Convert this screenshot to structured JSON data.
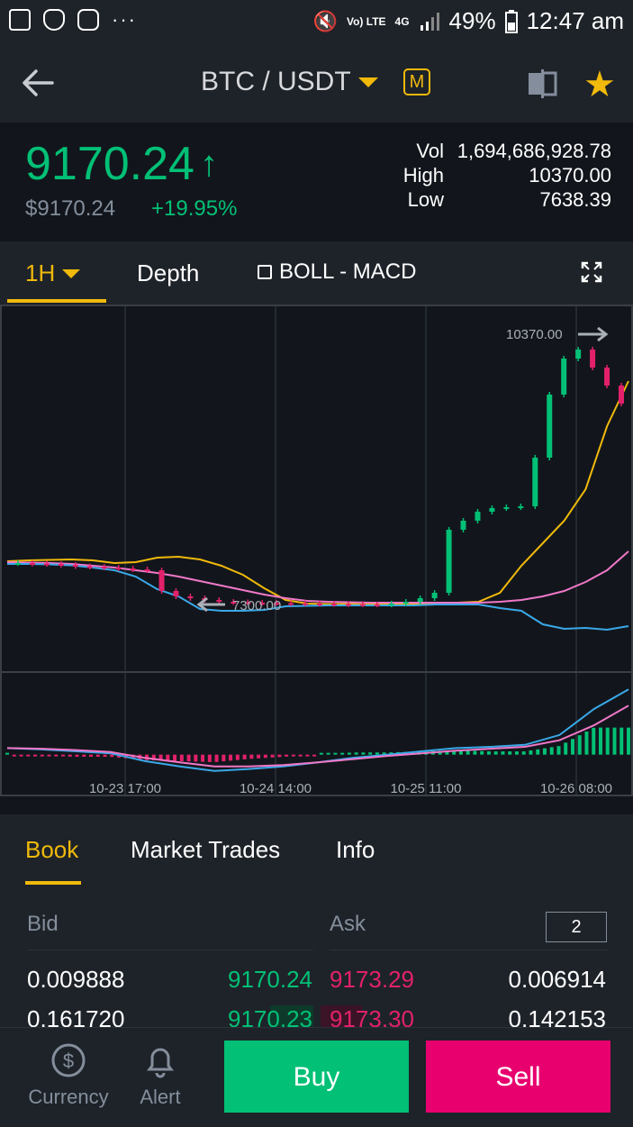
{
  "status_bar": {
    "battery": "49%",
    "time": "12:47 am",
    "network_top": "Vo) LTE",
    "network_gen": "4G"
  },
  "header": {
    "pair": "BTC / USDT",
    "margin_badge": "M"
  },
  "ticker": {
    "price": "9170.24",
    "usd_price": "$9170.24",
    "change": "+19.95%",
    "vol_label": "Vol",
    "vol": "1,694,686,928.78",
    "high_label": "High",
    "high": "10370.00",
    "low_label": "Low",
    "low": "7638.39"
  },
  "chart_tabs": {
    "interval": "1H",
    "depth": "Depth",
    "indicators": "BOLL - MACD"
  },
  "chart_data": {
    "type": "line",
    "x_ticks": [
      "10-23 17:00",
      "10-24 14:00",
      "10-25 11:00",
      "10-26 08:00"
    ],
    "annotations": {
      "high_marker": "10370.00",
      "low_marker": "7300.00"
    },
    "series": [
      {
        "name": "",
        "color": "#f0b90b",
        "values": [
          7950,
          7960,
          7965,
          7970,
          7960,
          7930,
          7940,
          7990,
          8000,
          7970,
          7900,
          7800,
          7650,
          7520,
          7480,
          7475,
          7475,
          7470,
          7475,
          7475,
          7480,
          7490,
          7500,
          7600,
          7900,
          8150,
          8400,
          8750,
          9450,
          9950
        ]
      },
      {
        "name": "",
        "color": "#f078c8",
        "values": [
          7940,
          7935,
          7930,
          7920,
          7900,
          7880,
          7850,
          7820,
          7780,
          7730,
          7680,
          7630,
          7580,
          7540,
          7510,
          7500,
          7495,
          7490,
          7490,
          7490,
          7490,
          7490,
          7490,
          7500,
          7520,
          7560,
          7620,
          7720,
          7850,
          8060
        ]
      },
      {
        "name": "",
        "color": "#3aa8e8",
        "values": [
          7920,
          7920,
          7915,
          7905,
          7880,
          7850,
          7780,
          7640,
          7560,
          7420,
          7400,
          7400,
          7410,
          7450,
          7455,
          7460,
          7460,
          7460,
          7460,
          7460,
          7470,
          7470,
          7470,
          7430,
          7400,
          7250,
          7200,
          7210,
          7190,
          7230
        ]
      }
    ],
    "candles_close": [
      7930,
      7925,
      7920,
      7910,
      7895,
      7890,
      7880,
      7870,
      7860,
      7850,
      7620,
      7560,
      7540,
      7520,
      7500,
      7495,
      7490,
      7488,
      7486,
      7484,
      7480,
      7478,
      7476,
      7474,
      7472,
      7470,
      7480,
      7500,
      7540,
      7600,
      8300,
      8400,
      8500,
      8540,
      8550,
      8560,
      9100,
      9800,
      10200,
      10300,
      10100,
      9900,
      9700
    ],
    "macd": {
      "dif": [
        0.1,
        0.08,
        0.05,
        0.02,
        -0.1,
        -0.18,
        -0.25,
        -0.22,
        -0.18,
        -0.12,
        -0.05,
        0.0,
        0.05,
        0.1,
        0.12,
        0.15,
        0.3,
        0.7,
        1.0
      ],
      "dea": [
        0.1,
        0.09,
        0.07,
        0.04,
        -0.05,
        -0.12,
        -0.18,
        -0.18,
        -0.16,
        -0.12,
        -0.07,
        -0.02,
        0.02,
        0.06,
        0.09,
        0.12,
        0.22,
        0.45,
        0.75
      ]
    }
  },
  "book_tabs": [
    "Book",
    "Market Trades",
    "Info"
  ],
  "book": {
    "bid_label": "Bid",
    "ask_label": "Ask",
    "depth_setting": "2",
    "rows": [
      {
        "bid_qty": "0.009888",
        "bid_price": "9170.24",
        "ask_price": "9173.29",
        "ask_qty": "0.006914"
      },
      {
        "bid_qty": "0.161720",
        "bid_price": "9170.23",
        "ask_price": "9173.30",
        "ask_qty": "0.142153"
      }
    ]
  },
  "bottom_nav": {
    "currency": "Currency",
    "alert": "Alert",
    "buy": "Buy",
    "sell": "Sell"
  }
}
